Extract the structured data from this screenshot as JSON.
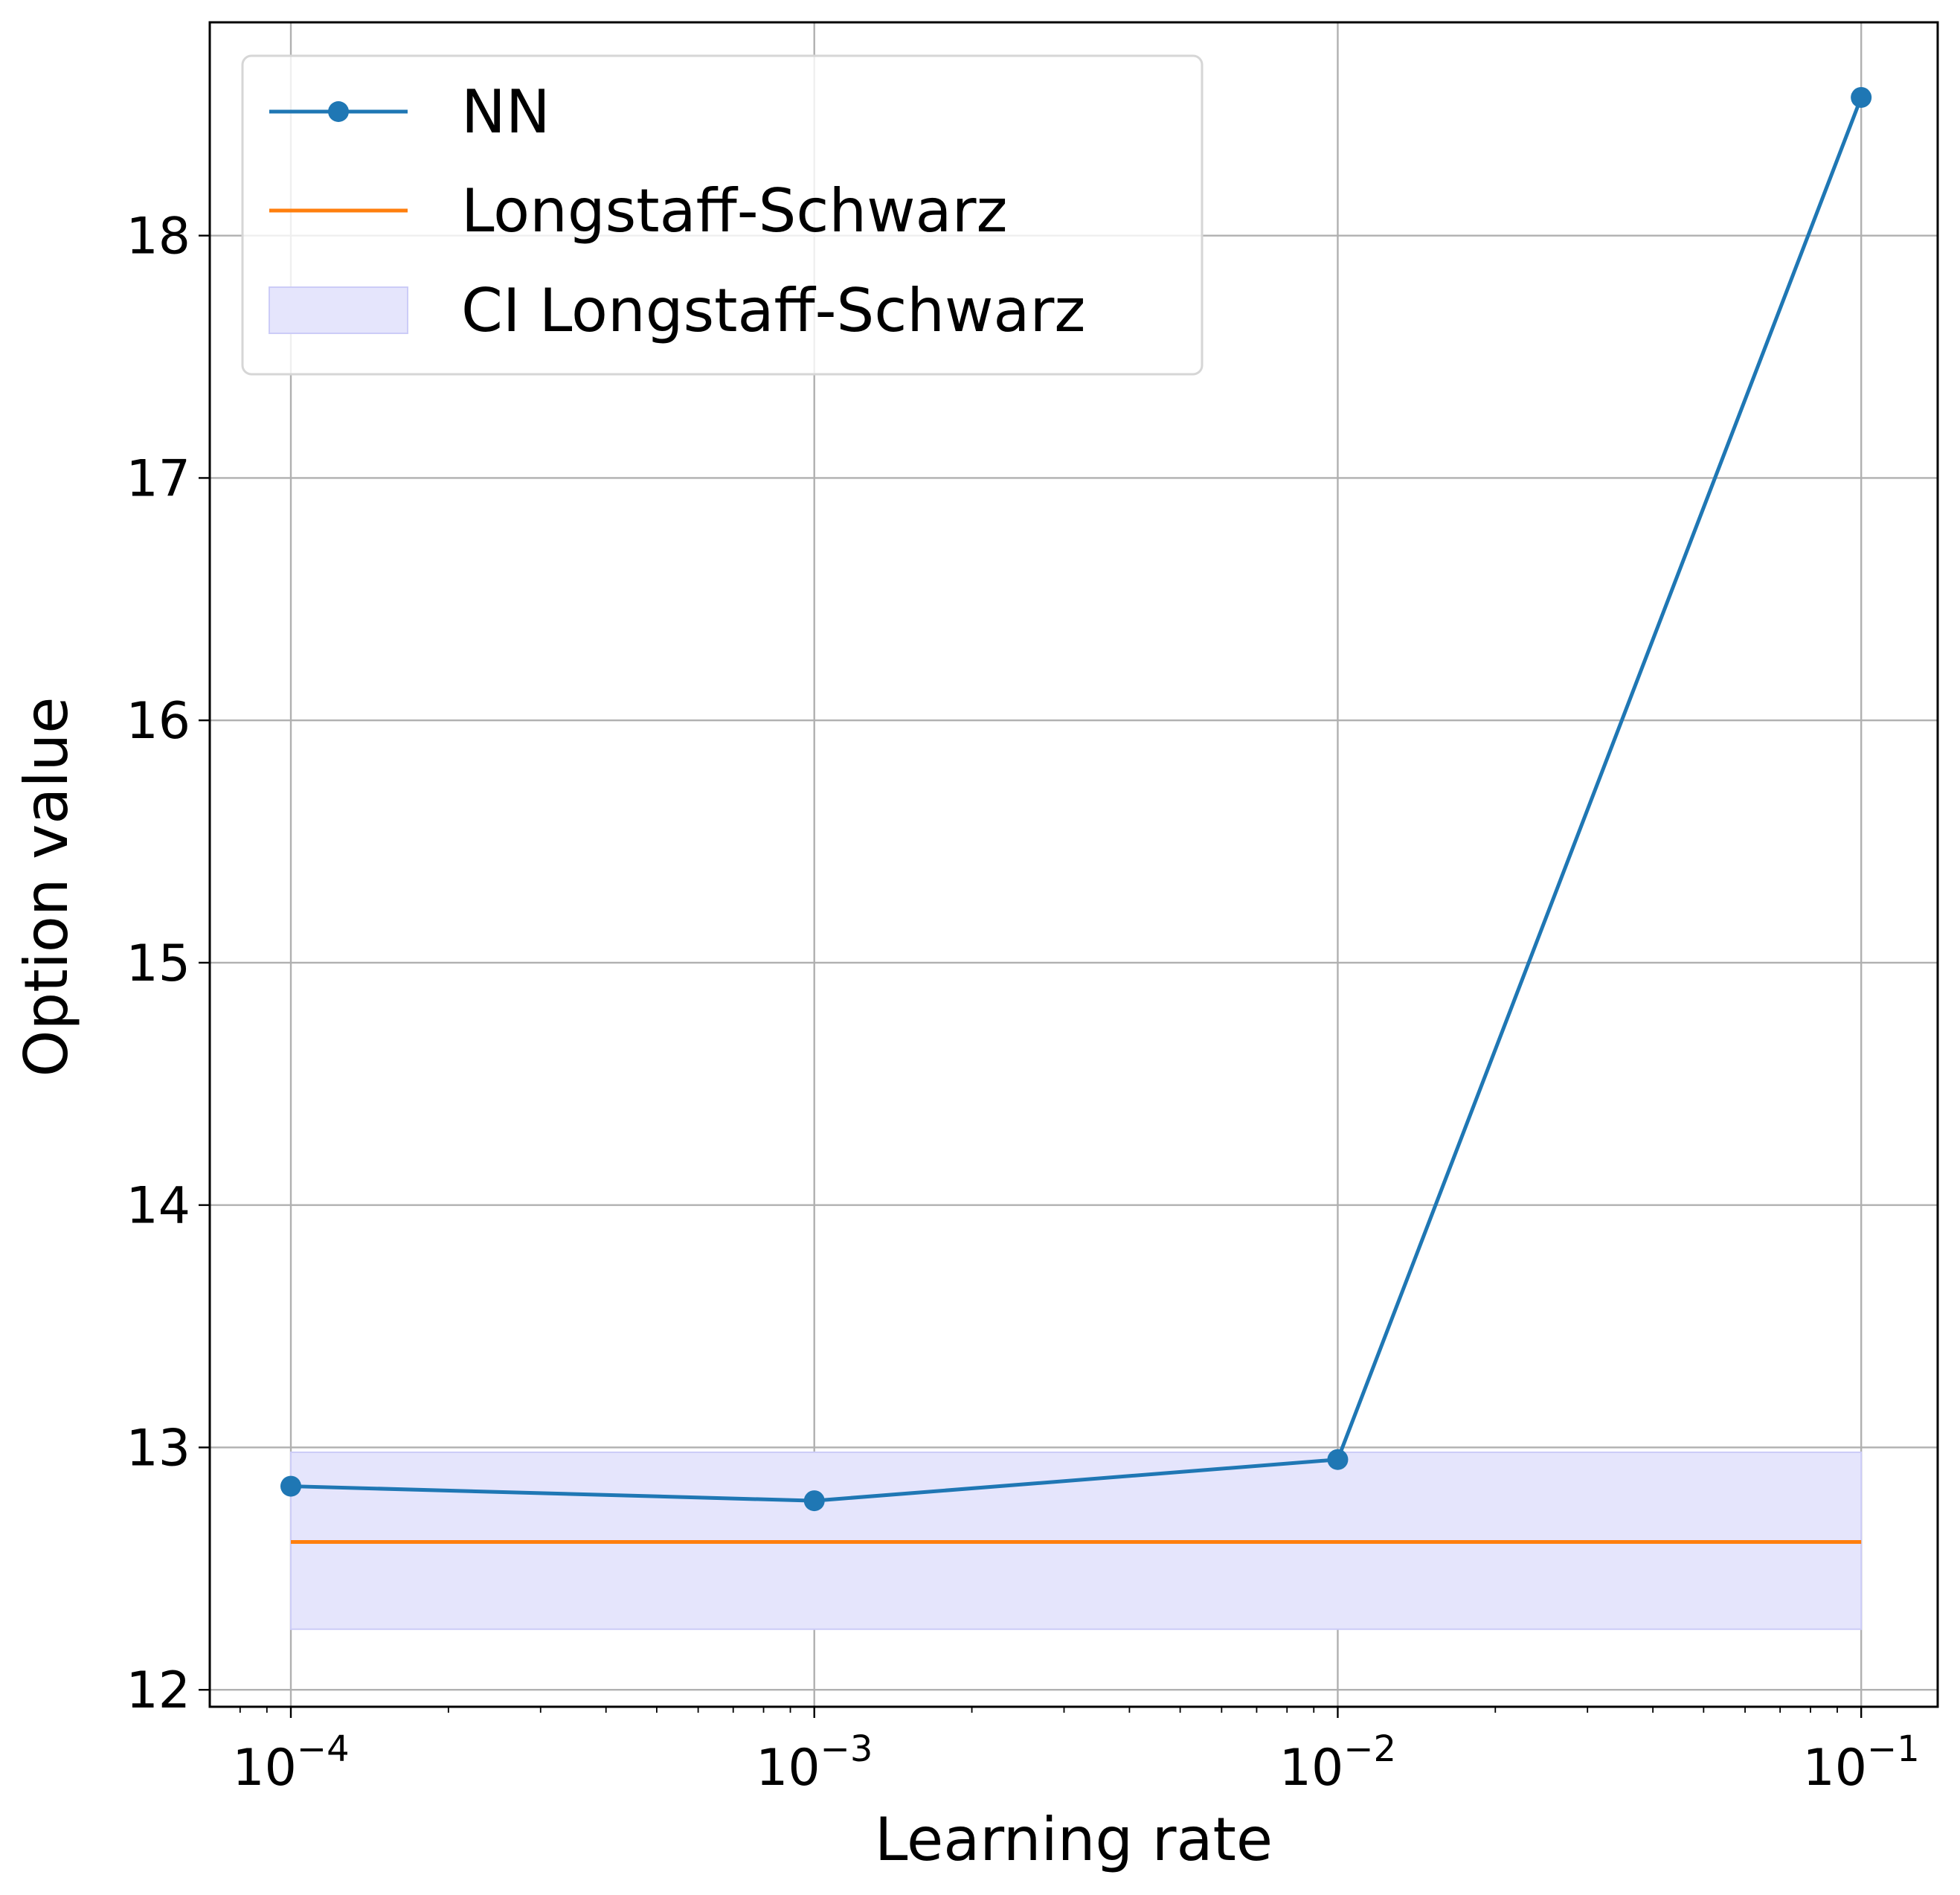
{
  "chart_data": {
    "type": "line",
    "xlabel": "Learning rate",
    "ylabel": "Option value",
    "xscale": "log",
    "xlim": [
      7e-05,
      0.14
    ],
    "ylim": [
      11.93,
      18.88
    ],
    "grid": true,
    "legend_position": "top-left",
    "x_ticks": [
      {
        "value": 0.0001,
        "base": "10",
        "exponent": "−4"
      },
      {
        "value": 0.001,
        "base": "10",
        "exponent": "−3"
      },
      {
        "value": 0.01,
        "base": "10",
        "exponent": "−2"
      },
      {
        "value": 0.1,
        "base": "10",
        "exponent": "−1"
      }
    ],
    "y_ticks": [
      {
        "value": 12,
        "label": "12"
      },
      {
        "value": 13,
        "label": "13"
      },
      {
        "value": 14,
        "label": "14"
      },
      {
        "value": 15,
        "label": "15"
      },
      {
        "value": 16,
        "label": "16"
      },
      {
        "value": 17,
        "label": "17"
      },
      {
        "value": 18,
        "label": "18"
      }
    ],
    "series": [
      {
        "name": "NN",
        "kind": "line-marker",
        "color": "#1f77b4",
        "x": [
          0.0001,
          0.001,
          0.01,
          0.1
        ],
        "y": [
          12.84,
          12.78,
          12.95,
          18.57
        ]
      },
      {
        "name": "Longstaff-Schwarz",
        "kind": "line",
        "color": "#ff7f0e",
        "x": [
          0.0001,
          0.1
        ],
        "y": [
          12.61,
          12.61
        ]
      },
      {
        "name": "CI Longstaff-Schwarz",
        "kind": "band",
        "color": "#e5e5fc",
        "edge_color": "#ccccf7",
        "x": [
          0.0001,
          0.1
        ],
        "lower": 12.25,
        "upper": 12.98
      }
    ]
  }
}
